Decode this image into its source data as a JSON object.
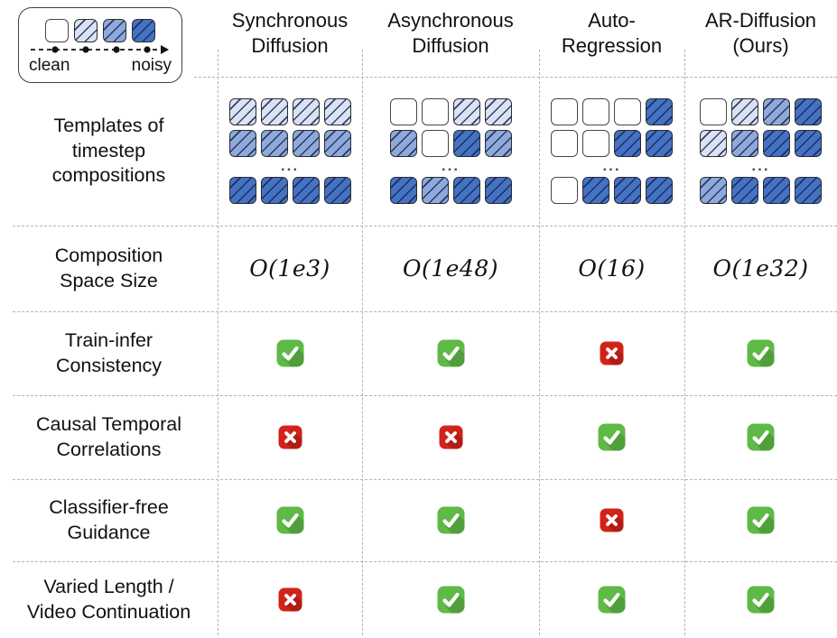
{
  "legend": {
    "clean_label": "clean",
    "noisy_label": "noisy"
  },
  "noise_levels": [
    "clean",
    "light",
    "medium",
    "noisy"
  ],
  "colors": {
    "clean": "#ffffff",
    "light_blue": "#dae3f4",
    "medium_blue": "#8ea9db",
    "dark_blue": "#4472c4",
    "check_green": "#5fb946",
    "cross_red": "#d2231a"
  },
  "rows": {
    "templates_label": "Templates of\ntimestep\ncompositions",
    "space_label": "Composition\nSpace Size",
    "ellipsis": "..."
  },
  "columns": [
    {
      "title": "Synchronous\nDiffusion",
      "space_size": "O(1e3)",
      "template": [
        [
          1,
          1,
          1,
          1
        ],
        [
          2,
          2,
          2,
          2
        ],
        [
          3,
          3,
          3,
          3
        ]
      ]
    },
    {
      "title": "Asynchronous\nDiffusion",
      "space_size": "O(1e48)",
      "template": [
        [
          0,
          0,
          1,
          1
        ],
        [
          2,
          0,
          3,
          2
        ],
        [
          3,
          2,
          3,
          3
        ]
      ]
    },
    {
      "title": "Auto-\nRegression",
      "space_size": "O(16)",
      "template": [
        [
          0,
          0,
          0,
          3
        ],
        [
          0,
          0,
          3,
          3
        ],
        [
          0,
          3,
          3,
          3
        ]
      ]
    },
    {
      "title": "AR-Diffusion\n(Ours)",
      "space_size": "O(1e32)",
      "template": [
        [
          0,
          1,
          2,
          3
        ],
        [
          1,
          2,
          3,
          3
        ],
        [
          2,
          3,
          3,
          3
        ]
      ]
    }
  ],
  "features": [
    {
      "label": "Train-infer\nConsistency",
      "values": [
        "check",
        "check",
        "cross",
        "check"
      ]
    },
    {
      "label": "Causal Temporal\nCorrelations",
      "values": [
        "cross",
        "cross",
        "check",
        "check"
      ]
    },
    {
      "label": "Classifier-free\nGuidance",
      "values": [
        "check",
        "check",
        "cross",
        "check"
      ]
    },
    {
      "label": "Varied Length /\nVideo Continuation",
      "values": [
        "cross",
        "check",
        "check",
        "check"
      ]
    }
  ]
}
